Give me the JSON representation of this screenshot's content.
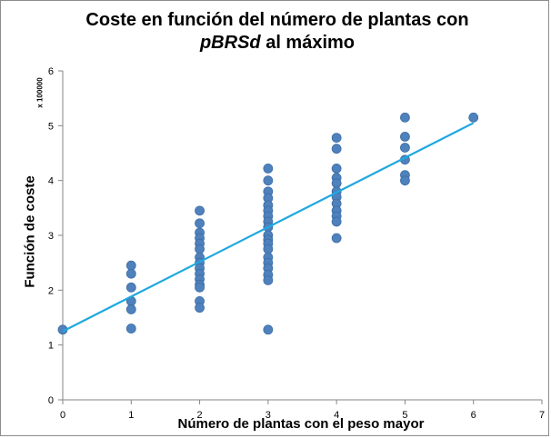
{
  "chart_data": {
    "type": "scatter",
    "title_plain": "Coste en función del número de plantas  con ",
    "title_italic": "pBRSd",
    "title_rest": " al máximo",
    "xlabel": "Número de plantas con el  peso mayor",
    "ylabel": "Función de coste",
    "y_unit": "x 100000",
    "xlim": [
      0,
      7
    ],
    "ylim": [
      0,
      6
    ],
    "xticks": [
      "0",
      "1",
      "2",
      "3",
      "4",
      "5",
      "6",
      "7"
    ],
    "yticks": [
      "0",
      "1",
      "2",
      "3",
      "4",
      "5",
      "6"
    ],
    "grid": false,
    "legend": "none",
    "marker_color": "#4f81bd",
    "trend_color": "#1fa8e0",
    "points": [
      [
        0,
        1.28
      ],
      [
        1,
        2.45
      ],
      [
        1,
        2.3
      ],
      [
        1,
        2.05
      ],
      [
        1,
        1.8
      ],
      [
        1,
        1.65
      ],
      [
        1,
        1.3
      ],
      [
        2,
        3.45
      ],
      [
        2,
        3.22
      ],
      [
        2,
        3.05
      ],
      [
        2,
        2.95
      ],
      [
        2,
        2.85
      ],
      [
        2,
        2.75
      ],
      [
        2,
        2.6
      ],
      [
        2,
        2.5
      ],
      [
        2,
        2.4
      ],
      [
        2,
        2.3
      ],
      [
        2,
        2.2
      ],
      [
        2,
        2.1
      ],
      [
        2,
        2.05
      ],
      [
        2,
        1.8
      ],
      [
        2,
        1.68
      ],
      [
        3,
        4.22
      ],
      [
        3,
        4.0
      ],
      [
        3,
        3.8
      ],
      [
        3,
        3.68
      ],
      [
        3,
        3.55
      ],
      [
        3,
        3.45
      ],
      [
        3,
        3.35
      ],
      [
        3,
        3.25
      ],
      [
        3,
        3.15
      ],
      [
        3,
        3.0
      ],
      [
        3,
        2.92
      ],
      [
        3,
        2.85
      ],
      [
        3,
        2.75
      ],
      [
        3,
        2.6
      ],
      [
        3,
        2.5
      ],
      [
        3,
        2.4
      ],
      [
        3,
        2.28
      ],
      [
        3,
        2.18
      ],
      [
        3,
        1.28
      ],
      [
        4,
        4.78
      ],
      [
        4,
        4.58
      ],
      [
        4,
        4.22
      ],
      [
        4,
        4.05
      ],
      [
        4,
        3.95
      ],
      [
        4,
        3.8
      ],
      [
        4,
        3.7
      ],
      [
        4,
        3.58
      ],
      [
        4,
        3.45
      ],
      [
        4,
        3.35
      ],
      [
        4,
        3.25
      ],
      [
        4,
        2.95
      ],
      [
        5,
        5.15
      ],
      [
        5,
        4.8
      ],
      [
        5,
        4.6
      ],
      [
        5,
        4.38
      ],
      [
        5,
        4.1
      ],
      [
        5,
        4.0
      ],
      [
        6,
        5.15
      ]
    ],
    "trendline": {
      "x": [
        0,
        6
      ],
      "y": [
        1.25,
        5.05
      ]
    }
  }
}
